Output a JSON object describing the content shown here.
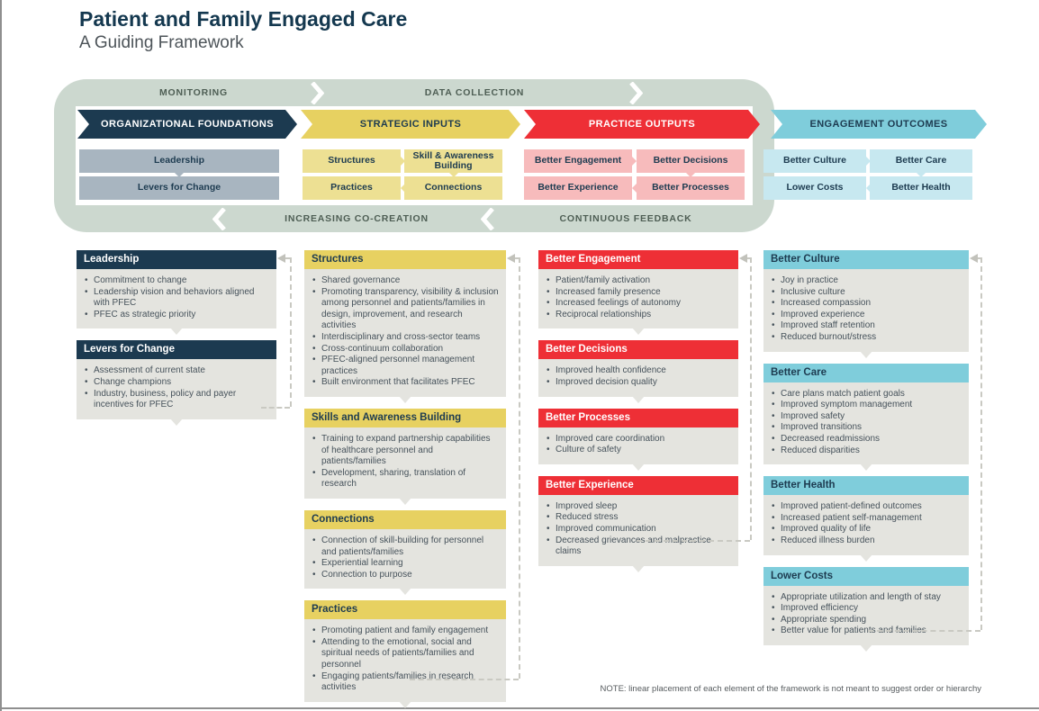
{
  "title": "Patient and Family Engaged Care",
  "subtitle": "A Guiding Framework",
  "note": "NOTE: linear placement of each element of the framework is not meant to suggest order or hierarchy",
  "banner": {
    "top_labels": [
      "MONITORING",
      "DATA COLLECTION"
    ],
    "bottom_labels": [
      "INCREASING CO-CREATION",
      "CONTINUOUS FEEDBACK"
    ]
  },
  "colors": {
    "navy": "#1C3A50",
    "yellow": "#E7D161",
    "red": "#EE2F36",
    "teal": "#7FCDDB",
    "sage_ring": "#CCD8CF",
    "gray_cell": "#A8B5C0",
    "yellow_cell": "#EDE093",
    "pink_cell": "#F7BBBC",
    "teal_cell": "#C7E8F0",
    "detail_body": "#E4E4DF",
    "dashed_line": "#C9C9C2"
  },
  "columns": [
    {
      "header": "ORGANIZATIONAL FOUNDATIONS",
      "theme": "navy",
      "grid": [
        [
          "Leadership"
        ],
        [
          "Levers for Change"
        ]
      ],
      "details": [
        {
          "title": "Leadership",
          "bullets": [
            "Commitment to change",
            "Leadership vision and behaviors aligned with PFEC",
            "PFEC as strategic priority"
          ]
        },
        {
          "title": "Levers for Change",
          "bullets": [
            "Assessment of current state",
            "Change champions",
            "Industry, business, policy and payer incentives for PFEC"
          ]
        }
      ]
    },
    {
      "header": "STRATEGIC INPUTS",
      "theme": "yellow",
      "grid": [
        [
          "Structures",
          "Skill & Awareness Building"
        ],
        [
          "Practices",
          "Connections"
        ]
      ],
      "details": [
        {
          "title": "Structures",
          "bullets": [
            "Shared governance",
            "Promoting transparency, visibility & inclusion among personnel and patients/families in design, improvement, and research activities",
            "Interdisciplinary and cross-sector teams",
            "Cross-continuum collaboration",
            "PFEC-aligned personnel management practices",
            "Built environment that facilitates PFEC"
          ]
        },
        {
          "title": "Skills and Awareness Building",
          "bullets": [
            "Training to expand partnership capabilities of healthcare personnel and patients/families",
            "Development, sharing, translation of research"
          ]
        },
        {
          "title": "Connections",
          "bullets": [
            "Connection of skill-building for personnel and patients/families",
            "Experiential learning",
            "Connection to purpose"
          ]
        },
        {
          "title": "Practices",
          "bullets": [
            "Promoting patient and family engagement",
            "Attending to the emotional, social and spiritual needs of patients/families and personnel",
            "Engaging patients/families in research activities"
          ]
        }
      ]
    },
    {
      "header": "PRACTICE OUTPUTS",
      "theme": "red",
      "grid": [
        [
          "Better Engagement",
          "Better Decisions"
        ],
        [
          "Better Experience",
          "Better Processes"
        ]
      ],
      "details": [
        {
          "title": "Better Engagement",
          "bullets": [
            "Patient/family activation",
            "Increased family presence",
            "Increased feelings of autonomy",
            "Reciprocal relationships"
          ]
        },
        {
          "title": "Better Decisions",
          "bullets": [
            "Improved health confidence",
            "Improved decision quality"
          ]
        },
        {
          "title": "Better Processes",
          "bullets": [
            "Improved care coordination",
            "Culture of safety"
          ]
        },
        {
          "title": "Better Experience",
          "bullets": [
            "Improved sleep",
            "Reduced stress",
            "Improved communication",
            "Decreased grievances and malpractice claims"
          ]
        }
      ]
    },
    {
      "header": "ENGAGEMENT OUTCOMES",
      "theme": "teal",
      "grid": [
        [
          "Better Culture",
          "Better Care"
        ],
        [
          "Lower Costs",
          "Better Health"
        ]
      ],
      "details": [
        {
          "title": "Better Culture",
          "bullets": [
            "Joy in practice",
            "Inclusive culture",
            "Increased compassion",
            "Improved experience",
            "Improved staff retention",
            "Reduced burnout/stress"
          ]
        },
        {
          "title": "Better Care",
          "bullets": [
            "Care plans match patient goals",
            "Improved symptom management",
            "Improved safety",
            "Improved transitions",
            "Decreased readmissions",
            "Reduced disparities"
          ]
        },
        {
          "title": "Better Health",
          "bullets": [
            "Improved patient-defined outcomes",
            "Increased patient self-management",
            "Improved quality of life",
            "Reduced illness burden"
          ]
        },
        {
          "title": "Lower Costs",
          "bullets": [
            "Appropriate utilization and length of stay",
            "Improved efficiency",
            "Appropriate spending",
            "Better value for patients and families"
          ]
        }
      ]
    }
  ]
}
